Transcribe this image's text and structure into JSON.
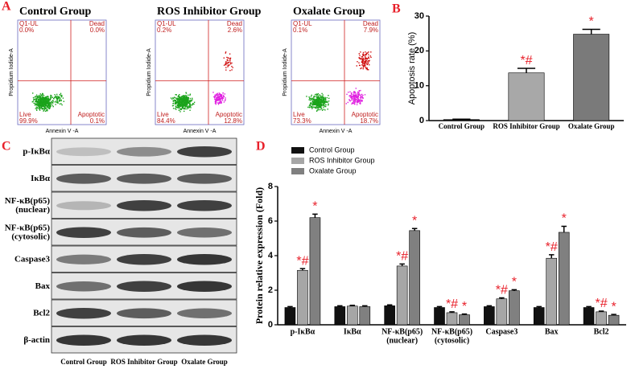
{
  "panel_labels": [
    "A",
    "B",
    "C",
    "D"
  ],
  "flow": {
    "x_label": "Annexin V -A",
    "y_label": "Propidium Iodide-A",
    "plots": [
      {
        "title": "Control Group",
        "q1_label": "Q1-UL",
        "q1": "0.0%",
        "dead_label": "Dead",
        "dead": "0.0%",
        "live_label": "Live",
        "live": "99.9%",
        "apoptotic_label": "Apoptotic",
        "apoptotic": "0.1%"
      },
      {
        "title": "ROS Inhibitor Group",
        "q1_label": "Q1-UL",
        "q1": "0.2%",
        "dead_label": "Dead",
        "dead": "2.6%",
        "live_label": "Live",
        "live": "84.4%",
        "apoptotic_label": "Apoptotic",
        "apoptotic": "12.8%"
      },
      {
        "title": "Oxalate Group",
        "q1_label": "Q1-UL",
        "q1": "0.1%",
        "dead_label": "Dead",
        "dead": "7.9%",
        "live_label": "Live",
        "live": "73.3%",
        "apoptotic_label": "Apoptotic",
        "apoptotic": "18.7%"
      }
    ]
  },
  "blot": {
    "rows": [
      [
        "p-IκBα"
      ],
      [
        "IκBα"
      ],
      [
        "NF-κB(p65)",
        "(nuclear)"
      ],
      [
        "NF-κB(p65)",
        "(cytosolic)"
      ],
      [
        "Caspase3"
      ],
      [
        "Bax"
      ],
      [
        "Bcl2"
      ],
      [
        "β-actin"
      ]
    ],
    "columns": [
      "Control Group",
      "ROS Inhibitor Group",
      "Oxalate Group"
    ]
  },
  "chart_data": [
    {
      "type": "bar",
      "ylabel": "Apoptosis rate (%)",
      "categories": [
        "Control Group",
        "ROS Inhibitor Group",
        "Oxalate Group"
      ],
      "values": [
        0.3,
        13.7,
        24.8
      ],
      "errors": [
        0.1,
        1.3,
        1.4
      ],
      "colors": [
        "#111111",
        "#a8a8a8",
        "#7a7a7a"
      ],
      "annotations": [
        null,
        "*#",
        "*"
      ],
      "annotation_color": "#e8202a",
      "ylim": [
        0,
        30
      ],
      "yticks": [
        0,
        10,
        20,
        30
      ]
    },
    {
      "type": "grouped_bar",
      "ylabel": "Protein relative expression (Fold)",
      "categories": [
        [
          "p-IκBα"
        ],
        [
          "IκBα"
        ],
        [
          "NF-κB(p65)",
          "(nuclear)"
        ],
        [
          "NF-κB(p65)",
          "(cytosolic)"
        ],
        [
          "Caspase3"
        ],
        [
          "Bax"
        ],
        [
          "Bcl2"
        ]
      ],
      "series": [
        {
          "name": "Control Group",
          "color": "#111111",
          "values": [
            1.0,
            1.05,
            1.1,
            1.0,
            1.05,
            1.0,
            1.0
          ],
          "errors": [
            0.05,
            0.05,
            0.05,
            0.05,
            0.05,
            0.05,
            0.05
          ],
          "annotations": [
            null,
            null,
            null,
            null,
            null,
            null,
            null
          ]
        },
        {
          "name": "ROS Inhibitor Group",
          "color": "#a6a6a6",
          "values": [
            3.15,
            1.08,
            3.4,
            0.7,
            1.5,
            3.85,
            0.75
          ],
          "errors": [
            0.1,
            0.05,
            0.12,
            0.05,
            0.06,
            0.2,
            0.04
          ],
          "annotations": [
            "*#",
            null,
            "*#",
            "*#",
            "*#",
            "*#",
            "*#"
          ]
        },
        {
          "name": "Oxalate Group",
          "color": "#808080",
          "values": [
            6.2,
            1.05,
            5.45,
            0.58,
            1.97,
            5.35,
            0.55
          ],
          "errors": [
            0.2,
            0.05,
            0.12,
            0.04,
            0.06,
            0.35,
            0.05
          ],
          "annotations": [
            "*",
            null,
            "*",
            "*",
            "*",
            "*",
            "*"
          ]
        }
      ],
      "annotation_color": "#e8202a",
      "ylim": [
        0,
        8
      ],
      "yticks": [
        0,
        2,
        4,
        6,
        8
      ]
    }
  ]
}
